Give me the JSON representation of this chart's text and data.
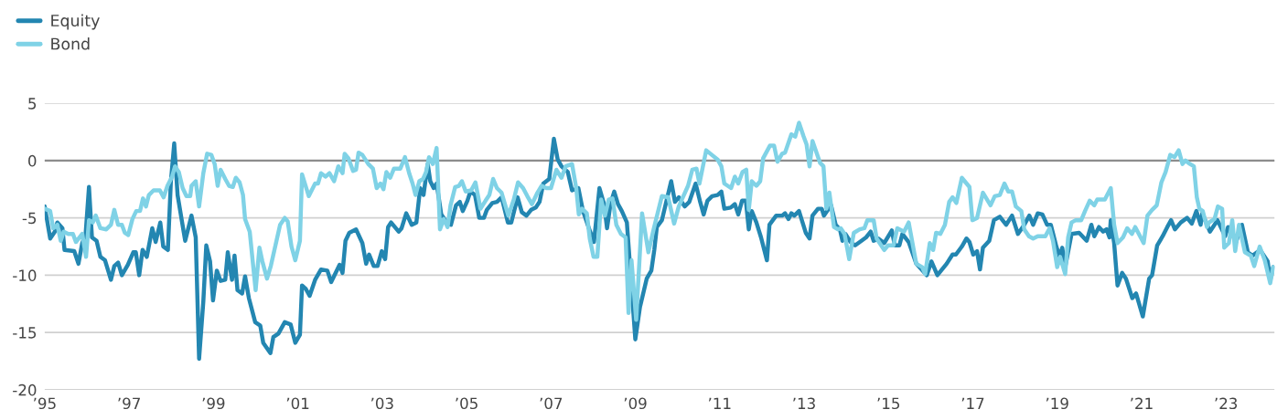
{
  "chart_data": {
    "type": "line",
    "xlim": [
      1995,
      2024.15
    ],
    "ylim": [
      -20,
      5
    ],
    "xticks": [
      {
        "value": 1995,
        "label": "’95"
      },
      {
        "value": 1997,
        "label": "’97"
      },
      {
        "value": 1999,
        "label": "’99"
      },
      {
        "value": 2001,
        "label": "’01"
      },
      {
        "value": 2003,
        "label": "’03"
      },
      {
        "value": 2005,
        "label": "’05"
      },
      {
        "value": 2007,
        "label": "’07"
      },
      {
        "value": 2009,
        "label": "’09"
      },
      {
        "value": 2011,
        "label": "’11"
      },
      {
        "value": 2013,
        "label": "’13"
      },
      {
        "value": 2015,
        "label": "’15"
      },
      {
        "value": 2017,
        "label": "’17"
      },
      {
        "value": 2019,
        "label": "’19"
      },
      {
        "value": 2021,
        "label": "’21"
      },
      {
        "value": 2023,
        "label": "’23"
      }
    ],
    "yticks": [
      5,
      0,
      -5,
      -10,
      -15,
      -20
    ],
    "grid": "y",
    "legend": "top left",
    "line_style": "solid",
    "marker": "none",
    "ref_lines": [
      {
        "axis": "y",
        "value": 0,
        "color": "#8c8c8c"
      }
    ],
    "series": [
      {
        "name": "Equity",
        "color": "#2386b1",
        "x": [
          1995.0,
          1995.13,
          1995.24,
          1995.3,
          1995.42,
          1995.47,
          1995.7,
          1995.8,
          1995.89,
          1995.97,
          1996.05,
          1996.12,
          1996.23,
          1996.32,
          1996.43,
          1996.57,
          1996.65,
          1996.74,
          1996.83,
          1996.97,
          1997.1,
          1997.16,
          1997.24,
          1997.32,
          1997.42,
          1997.55,
          1997.63,
          1997.74,
          1997.81,
          1997.92,
          1997.99,
          1998.07,
          1998.15,
          1998.33,
          1998.48,
          1998.58,
          1998.66,
          1998.76,
          1998.83,
          1998.92,
          1998.99,
          1999.08,
          1999.17,
          1999.28,
          1999.34,
          1999.44,
          1999.5,
          1999.57,
          1999.68,
          1999.75,
          1999.84,
          1999.99,
          2000.11,
          2000.18,
          2000.35,
          2000.42,
          2000.54,
          2000.69,
          2000.83,
          2000.94,
          2001.05,
          2001.1,
          2001.19,
          2001.28,
          2001.41,
          2001.55,
          2001.7,
          2001.79,
          2001.99,
          2002.06,
          2002.13,
          2002.22,
          2002.38,
          2002.53,
          2002.62,
          2002.69,
          2002.8,
          2002.89,
          2002.99,
          2003.07,
          2003.14,
          2003.21,
          2003.39,
          2003.46,
          2003.57,
          2003.7,
          2003.81,
          2003.9,
          2003.98,
          2004.08,
          2004.14,
          2004.22,
          2004.29,
          2004.4,
          2004.55,
          2004.63,
          2004.75,
          2004.84,
          2004.91,
          2005.02,
          2005.09,
          2005.2,
          2005.3,
          2005.41,
          2005.48,
          2005.61,
          2005.72,
          2005.83,
          2005.98,
          2006.06,
          2006.21,
          2006.31,
          2006.42,
          2006.53,
          2006.64,
          2006.73,
          2006.82,
          2006.96,
          2007.07,
          2007.16,
          2007.25,
          2007.4,
          2007.5,
          2007.65,
          2007.76,
          2007.9,
          2008.02,
          2008.15,
          2008.26,
          2008.33,
          2008.41,
          2008.5,
          2008.59,
          2008.68,
          2008.8,
          2009.0,
          2009.11,
          2009.27,
          2009.38,
          2009.45,
          2009.51,
          2009.63,
          2009.74,
          2009.85,
          2009.94,
          2010.03,
          2010.17,
          2010.28,
          2010.43,
          2010.53,
          2010.62,
          2010.71,
          2010.82,
          2010.95,
          2011.04,
          2011.11,
          2011.26,
          2011.36,
          2011.44,
          2011.53,
          2011.62,
          2011.69,
          2011.76,
          2011.87,
          2011.98,
          2012.12,
          2012.18,
          2012.34,
          2012.48,
          2012.55,
          2012.63,
          2012.7,
          2012.77,
          2012.88,
          2013.04,
          2013.13,
          2013.2,
          2013.33,
          2013.42,
          2013.47,
          2013.64,
          2013.75,
          2013.85,
          2013.91,
          2013.98,
          2014.1,
          2014.21,
          2014.36,
          2014.47,
          2014.58,
          2014.65,
          2014.76,
          2014.9,
          2015.08,
          2015.15,
          2015.26,
          2015.33,
          2015.48,
          2015.66,
          2015.91,
          2016.02,
          2016.16,
          2016.38,
          2016.52,
          2016.6,
          2016.74,
          2016.85,
          2016.92,
          2017.01,
          2017.1,
          2017.17,
          2017.24,
          2017.39,
          2017.5,
          2017.64,
          2017.79,
          2017.93,
          2018.07,
          2018.22,
          2018.34,
          2018.43,
          2018.54,
          2018.65,
          2018.76,
          2018.85,
          2018.98,
          2019.06,
          2019.12,
          2019.19,
          2019.34,
          2019.52,
          2019.7,
          2019.81,
          2019.88,
          2019.99,
          2020.09,
          2020.17,
          2020.24,
          2020.27,
          2020.35,
          2020.43,
          2020.54,
          2020.63,
          2020.78,
          2020.87,
          2021.03,
          2021.18,
          2021.25,
          2021.37,
          2021.5,
          2021.61,
          2021.7,
          2021.79,
          2021.93,
          2022.08,
          2022.19,
          2022.3,
          2022.4,
          2022.44,
          2022.62,
          2022.8,
          2022.98,
          2023.05,
          2023.16,
          2023.23,
          2023.38,
          2023.52,
          2023.63,
          2023.81,
          2023.99,
          2024.05,
          2024.12
        ],
        "values": [
          -4.0,
          -6.8,
          -6.2,
          -5.4,
          -5.9,
          -7.8,
          -7.9,
          -9.0,
          -7.2,
          -6.4,
          -2.3,
          -6.7,
          -7.0,
          -8.4,
          -8.7,
          -10.4,
          -9.2,
          -8.9,
          -10.0,
          -9.1,
          -8.0,
          -8.0,
          -10.0,
          -7.8,
          -8.4,
          -5.9,
          -7.1,
          -5.4,
          -7.5,
          -7.8,
          -1.9,
          1.5,
          -3.0,
          -7.0,
          -4.8,
          -6.7,
          -17.3,
          -12.3,
          -7.4,
          -8.8,
          -12.2,
          -9.6,
          -10.5,
          -10.4,
          -8.0,
          -10.4,
          -8.3,
          -11.3,
          -11.6,
          -10.1,
          -12.0,
          -14.1,
          -14.4,
          -15.9,
          -16.8,
          -15.4,
          -15.1,
          -14.1,
          -14.3,
          -15.9,
          -15.2,
          -10.9,
          -11.2,
          -11.8,
          -10.4,
          -9.5,
          -9.6,
          -10.6,
          -9.1,
          -9.8,
          -7.0,
          -6.3,
          -6.0,
          -7.2,
          -9.0,
          -8.2,
          -9.2,
          -9.2,
          -7.9,
          -8.6,
          -5.8,
          -5.4,
          -6.2,
          -5.9,
          -4.6,
          -5.6,
          -5.4,
          -2.4,
          -3.0,
          -0.3,
          -1.8,
          -2.4,
          -2.0,
          -4.7,
          -5.5,
          -5.6,
          -3.9,
          -3.6,
          -4.4,
          -3.5,
          -2.7,
          -3.0,
          -5.0,
          -5.0,
          -4.3,
          -3.7,
          -3.6,
          -3.2,
          -5.4,
          -5.4,
          -3.2,
          -4.5,
          -4.8,
          -4.3,
          -4.1,
          -3.6,
          -2.0,
          -1.6,
          1.9,
          0.1,
          -0.5,
          -1.0,
          -2.6,
          -2.4,
          -4.4,
          -5.9,
          -7.1,
          -2.4,
          -3.8,
          -5.9,
          -3.8,
          -2.7,
          -3.8,
          -4.4,
          -5.4,
          -15.6,
          -12.8,
          -10.3,
          -9.6,
          -7.8,
          -5.8,
          -5.2,
          -3.5,
          -1.8,
          -3.6,
          -3.2,
          -4.0,
          -3.6,
          -2.0,
          -3.5,
          -4.7,
          -3.5,
          -3.1,
          -3.0,
          -2.7,
          -4.2,
          -4.1,
          -3.8,
          -4.7,
          -3.5,
          -3.5,
          -6.0,
          -4.4,
          -5.4,
          -6.7,
          -8.7,
          -5.6,
          -4.8,
          -4.8,
          -4.6,
          -5.1,
          -4.6,
          -4.8,
          -4.4,
          -6.3,
          -6.8,
          -4.8,
          -4.2,
          -4.2,
          -4.8,
          -3.9,
          -5.6,
          -6.0,
          -7.0,
          -6.4,
          -7.1,
          -7.4,
          -7.0,
          -6.7,
          -6.2,
          -7.0,
          -6.8,
          -7.2,
          -6.1,
          -7.4,
          -7.4,
          -6.4,
          -7.1,
          -9.0,
          -10.0,
          -8.8,
          -10.0,
          -9.0,
          -8.2,
          -8.2,
          -7.5,
          -6.8,
          -7.1,
          -8.2,
          -7.9,
          -9.5,
          -7.6,
          -7.0,
          -5.2,
          -4.9,
          -5.6,
          -4.8,
          -6.4,
          -5.6,
          -4.8,
          -5.6,
          -4.6,
          -4.7,
          -5.6,
          -5.6,
          -7.5,
          -8.4,
          -7.6,
          -9.3,
          -6.4,
          -6.3,
          -7.0,
          -5.6,
          -6.6,
          -5.8,
          -6.2,
          -6.0,
          -6.7,
          -5.2,
          -7.2,
          -10.9,
          -9.8,
          -10.3,
          -12.0,
          -11.6,
          -13.6,
          -10.3,
          -10.0,
          -7.4,
          -6.6,
          -5.8,
          -5.2,
          -6.0,
          -5.4,
          -5.0,
          -5.5,
          -4.4,
          -5.6,
          -4.6,
          -6.2,
          -5.2,
          -6.6,
          -5.8,
          -6.4,
          -7.2,
          -5.6,
          -8.0,
          -8.3,
          -7.8,
          -8.8,
          -10.4,
          -9.3
        ]
      },
      {
        "name": "Bond",
        "color": "#7fd2e6",
        "x": [
          1995.0,
          1995.13,
          1995.2,
          1995.3,
          1995.38,
          1995.45,
          1995.56,
          1995.67,
          1995.74,
          1995.89,
          1995.98,
          1996.05,
          1996.14,
          1996.21,
          1996.32,
          1996.46,
          1996.57,
          1996.65,
          1996.74,
          1996.83,
          1996.9,
          1996.98,
          1997.08,
          1997.17,
          1997.26,
          1997.33,
          1997.4,
          1997.47,
          1997.58,
          1997.73,
          1997.82,
          1997.91,
          1998.02,
          1998.09,
          1998.18,
          1998.27,
          1998.36,
          1998.45,
          1998.48,
          1998.58,
          1998.66,
          1998.76,
          1998.85,
          1998.95,
          1999.03,
          1999.1,
          1999.17,
          1999.28,
          1999.37,
          1999.46,
          1999.53,
          1999.62,
          1999.7,
          1999.75,
          1999.86,
          2000.0,
          2000.09,
          2000.16,
          2000.27,
          2000.36,
          2000.58,
          2000.69,
          2000.76,
          2000.85,
          2000.94,
          2001.05,
          2001.1,
          2001.26,
          2001.41,
          2001.48,
          2001.55,
          2001.66,
          2001.75,
          2001.86,
          2001.96,
          2002.06,
          2002.11,
          2002.2,
          2002.31,
          2002.38,
          2002.44,
          2002.53,
          2002.67,
          2002.78,
          2002.87,
          2002.96,
          2003.03,
          2003.1,
          2003.19,
          2003.28,
          2003.43,
          2003.54,
          2003.64,
          2003.72,
          2003.79,
          2003.88,
          2003.97,
          2004.04,
          2004.11,
          2004.2,
          2004.29,
          2004.37,
          2004.46,
          2004.55,
          2004.62,
          2004.73,
          2004.82,
          2004.89,
          2004.98,
          2005.11,
          2005.21,
          2005.33,
          2005.45,
          2005.54,
          2005.63,
          2005.72,
          2005.83,
          2005.99,
          2006.12,
          2006.22,
          2006.34,
          2006.44,
          2006.55,
          2006.68,
          2006.78,
          2006.89,
          2007.0,
          2007.13,
          2007.25,
          2007.35,
          2007.5,
          2007.6,
          2007.66,
          2007.74,
          2007.85,
          2007.92,
          2008.01,
          2008.1,
          2008.19,
          2008.28,
          2008.37,
          2008.46,
          2008.55,
          2008.66,
          2008.77,
          2008.84,
          2008.91,
          2009.02,
          2009.16,
          2009.31,
          2009.44,
          2009.63,
          2009.78,
          2009.92,
          2010.03,
          2010.25,
          2010.35,
          2010.45,
          2010.52,
          2010.68,
          2010.95,
          2011.04,
          2011.11,
          2011.27,
          2011.36,
          2011.44,
          2011.54,
          2011.63,
          2011.69,
          2011.76,
          2011.87,
          2011.96,
          2012.03,
          2012.19,
          2012.29,
          2012.37,
          2012.48,
          2012.55,
          2012.7,
          2012.79,
          2012.88,
          2012.99,
          2013.06,
          2013.13,
          2013.2,
          2013.38,
          2013.46,
          2013.53,
          2013.6,
          2013.71,
          2013.8,
          2013.87,
          2013.96,
          2014.07,
          2014.18,
          2014.32,
          2014.43,
          2014.5,
          2014.65,
          2014.72,
          2014.9,
          2014.99,
          2015.12,
          2015.21,
          2015.37,
          2015.48,
          2015.66,
          2015.8,
          2015.87,
          2015.98,
          2016.06,
          2016.13,
          2016.23,
          2016.34,
          2016.44,
          2016.52,
          2016.61,
          2016.74,
          2016.92,
          2016.99,
          2017.1,
          2017.24,
          2017.42,
          2017.52,
          2017.64,
          2017.75,
          2017.84,
          2017.93,
          2018.02,
          2018.15,
          2018.22,
          2018.33,
          2018.43,
          2018.54,
          2018.72,
          2018.82,
          2018.9,
          2019.0,
          2019.07,
          2019.19,
          2019.26,
          2019.34,
          2019.44,
          2019.57,
          2019.66,
          2019.77,
          2019.88,
          2019.95,
          2020.13,
          2020.27,
          2020.35,
          2020.43,
          2020.56,
          2020.66,
          2020.77,
          2020.85,
          2021.05,
          2021.14,
          2021.25,
          2021.36,
          2021.47,
          2021.57,
          2021.68,
          2021.78,
          2021.88,
          2021.97,
          2022.04,
          2022.15,
          2022.24,
          2022.31,
          2022.37,
          2022.45,
          2022.55,
          2022.6,
          2022.73,
          2022.81,
          2022.91,
          2022.96,
          2023.07,
          2023.15,
          2023.22,
          2023.31,
          2023.45,
          2023.59,
          2023.67,
          2023.8,
          2023.92,
          2024.05,
          2024.12
        ],
        "values": [
          -4.2,
          -4.4,
          -5.9,
          -5.6,
          -7.0,
          -6.2,
          -6.4,
          -6.4,
          -7.1,
          -6.4,
          -8.4,
          -5.2,
          -5.4,
          -4.8,
          -5.9,
          -6.0,
          -5.6,
          -4.3,
          -5.6,
          -5.6,
          -6.3,
          -6.5,
          -5.1,
          -4.4,
          -4.4,
          -3.3,
          -4.0,
          -3.0,
          -2.6,
          -2.6,
          -3.2,
          -2.2,
          -1.4,
          -0.5,
          -1.0,
          -2.4,
          -3.1,
          -3.1,
          -2.2,
          -1.8,
          -4.0,
          -1.1,
          0.6,
          0.5,
          -0.3,
          -2.2,
          -0.8,
          -1.6,
          -2.2,
          -2.3,
          -1.5,
          -1.9,
          -3.0,
          -5.1,
          -6.2,
          -11.3,
          -7.6,
          -8.8,
          -10.3,
          -9.2,
          -5.6,
          -5.0,
          -5.3,
          -7.5,
          -8.7,
          -7.0,
          -1.2,
          -3.1,
          -2.0,
          -2.0,
          -1.1,
          -1.4,
          -1.1,
          -1.8,
          -0.5,
          -1.1,
          0.6,
          0.2,
          -0.9,
          -0.8,
          0.7,
          0.5,
          -0.3,
          -0.7,
          -2.4,
          -2.0,
          -2.5,
          -1.0,
          -1.5,
          -0.7,
          -0.7,
          0.3,
          -1.1,
          -2.0,
          -3.0,
          -1.8,
          -1.6,
          -1.0,
          0.3,
          -0.3,
          1.1,
          -6.0,
          -5.1,
          -5.8,
          -3.9,
          -2.3,
          -2.2,
          -1.8,
          -2.7,
          -2.6,
          -1.9,
          -4.2,
          -3.5,
          -3.0,
          -1.6,
          -2.4,
          -2.8,
          -4.8,
          -3.4,
          -1.9,
          -2.4,
          -3.1,
          -3.8,
          -2.8,
          -2.2,
          -2.4,
          -2.4,
          -0.8,
          -1.5,
          -0.5,
          -0.3,
          -2.4,
          -4.7,
          -4.2,
          -4.6,
          -6.8,
          -8.4,
          -8.4,
          -3.4,
          -4.8,
          -3.4,
          -3.3,
          -5.6,
          -6.4,
          -6.7,
          -13.3,
          -8.7,
          -13.9,
          -4.6,
          -8.0,
          -5.9,
          -3.1,
          -3.2,
          -5.5,
          -4.0,
          -2.2,
          -0.8,
          -0.7,
          -2.0,
          0.9,
          0.1,
          -0.5,
          -2.0,
          -2.4,
          -1.4,
          -2.0,
          -1.0,
          -0.8,
          -4.3,
          -1.8,
          -2.2,
          -1.8,
          0.2,
          1.3,
          1.3,
          -0.1,
          0.6,
          0.7,
          2.3,
          2.1,
          3.3,
          2.1,
          1.4,
          -0.5,
          1.7,
          -0.2,
          -0.5,
          -4.2,
          -2.8,
          -5.8,
          -6.0,
          -5.9,
          -6.4,
          -8.6,
          -6.3,
          -6.0,
          -5.9,
          -5.2,
          -5.2,
          -6.8,
          -7.8,
          -7.4,
          -7.4,
          -5.9,
          -6.2,
          -5.4,
          -9.0,
          -9.3,
          -9.9,
          -7.2,
          -7.8,
          -6.3,
          -6.4,
          -5.6,
          -3.6,
          -3.2,
          -3.7,
          -1.5,
          -2.3,
          -5.2,
          -5.0,
          -2.8,
          -3.9,
          -3.1,
          -3.0,
          -2.0,
          -2.7,
          -2.7,
          -4.0,
          -4.4,
          -6.0,
          -6.6,
          -6.8,
          -6.6,
          -6.6,
          -5.9,
          -7.0,
          -9.3,
          -8.4,
          -9.9,
          -6.7,
          -5.4,
          -5.2,
          -5.2,
          -4.4,
          -3.5,
          -3.9,
          -3.4,
          -3.4,
          -2.4,
          -5.6,
          -7.2,
          -6.7,
          -5.9,
          -6.4,
          -5.8,
          -7.2,
          -4.8,
          -4.3,
          -3.9,
          -1.9,
          -1.0,
          0.5,
          0.3,
          0.9,
          -0.3,
          0.0,
          -0.3,
          -0.5,
          -3.2,
          -4.2,
          -4.4,
          -5.8,
          -5.4,
          -5.1,
          -4.0,
          -4.2,
          -7.6,
          -7.2,
          -5.2,
          -7.9,
          -5.6,
          -8.0,
          -8.3,
          -9.2,
          -7.5,
          -8.7,
          -10.7,
          -9.3
        ]
      }
    ]
  }
}
